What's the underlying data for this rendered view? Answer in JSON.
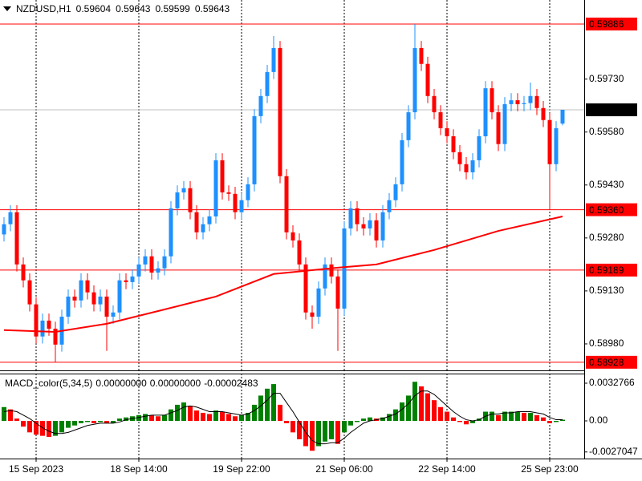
{
  "chart_data": [
    {
      "type": "candlestick",
      "symbol": "NZDUSD,H1",
      "open": [
        0.5929,
        0.59319,
        0.59353,
        0.59205,
        0.5916,
        0.59092,
        0.59001,
        0.59046,
        0.59023,
        0.58978,
        0.59057,
        0.59114,
        0.59103,
        0.5916,
        0.59126,
        0.59092,
        0.59114,
        0.59057,
        0.59069,
        0.5916,
        0.59155,
        0.59171,
        0.59205,
        0.59228,
        0.59182,
        0.59194,
        0.59228,
        0.59364,
        0.59409,
        0.59421,
        0.59353,
        0.59296,
        0.59319,
        0.59341,
        0.595,
        0.59409,
        0.59405,
        0.59353,
        0.59387,
        0.59432,
        0.59625,
        0.59682,
        0.5975,
        0.59818,
        0.59455,
        0.59296,
        0.59273,
        0.59205,
        0.59069,
        0.59057,
        0.59137,
        0.59205,
        0.59171,
        0.5908,
        0.59307,
        0.59364,
        0.59319,
        0.59307,
        0.5933,
        0.59273,
        0.59353,
        0.59387,
        0.59432,
        0.59557,
        0.59636,
        0.59818,
        0.59773,
        0.59682,
        0.59636,
        0.59591,
        0.59568,
        0.59523,
        0.59489,
        0.59466,
        0.595,
        0.59568,
        0.59704,
        0.59636,
        0.59546,
        0.59659,
        0.5967,
        0.59659,
        0.59662,
        0.59682,
        0.59648,
        0.59614,
        0.59489,
        0.59604
      ],
      "high": [
        0.59339,
        0.59373,
        0.59373,
        0.59225,
        0.5918,
        0.59112,
        0.59066,
        0.59066,
        0.59043,
        0.59077,
        0.59134,
        0.59134,
        0.5918,
        0.5918,
        0.59146,
        0.59134,
        0.59134,
        0.59089,
        0.5918,
        0.5918,
        0.59191,
        0.59225,
        0.59248,
        0.59248,
        0.59214,
        0.59248,
        0.59384,
        0.59429,
        0.59441,
        0.59441,
        0.59373,
        0.59339,
        0.59361,
        0.5952,
        0.5952,
        0.59429,
        0.59425,
        0.59407,
        0.59452,
        0.59645,
        0.59702,
        0.5977,
        0.59852,
        0.59838,
        0.59475,
        0.59316,
        0.59293,
        0.59225,
        0.59089,
        0.59157,
        0.59225,
        0.59225,
        0.59191,
        0.59327,
        0.59384,
        0.59384,
        0.59339,
        0.5935,
        0.5935,
        0.59373,
        0.59407,
        0.59452,
        0.59577,
        0.59656,
        0.59886,
        0.59838,
        0.59793,
        0.59702,
        0.59656,
        0.59611,
        0.59588,
        0.59543,
        0.59509,
        0.5952,
        0.59588,
        0.59724,
        0.59724,
        0.59656,
        0.59679,
        0.5969,
        0.5969,
        0.59682,
        0.5972,
        0.59702,
        0.59668,
        0.59634,
        0.59611,
        0.59643
      ],
      "low": [
        0.5927,
        0.59299,
        0.59185,
        0.5914,
        0.59072,
        0.58981,
        0.58981,
        0.59003,
        0.58928,
        0.58958,
        0.59037,
        0.59083,
        0.59083,
        0.59106,
        0.59072,
        0.59072,
        0.5896,
        0.59037,
        0.59049,
        0.59135,
        0.59135,
        0.59151,
        0.59185,
        0.59162,
        0.59162,
        0.59174,
        0.59208,
        0.59344,
        0.59389,
        0.59333,
        0.59276,
        0.59276,
        0.59299,
        0.59321,
        0.59389,
        0.59385,
        0.59333,
        0.59333,
        0.59367,
        0.59412,
        0.59605,
        0.59662,
        0.5973,
        0.59435,
        0.59276,
        0.59253,
        0.59185,
        0.59049,
        0.59023,
        0.59037,
        0.59117,
        0.59151,
        0.5896,
        0.5906,
        0.59287,
        0.59299,
        0.59287,
        0.59287,
        0.59253,
        0.59253,
        0.59333,
        0.59367,
        0.59412,
        0.59537,
        0.59616,
        0.59753,
        0.59662,
        0.59616,
        0.59571,
        0.59548,
        0.59503,
        0.59469,
        0.59446,
        0.59446,
        0.5948,
        0.59548,
        0.59616,
        0.59526,
        0.59526,
        0.59639,
        0.59639,
        0.59639,
        0.59642,
        0.59628,
        0.59594,
        0.5936,
        0.59469,
        0.59599
      ],
      "close": [
        0.59319,
        0.59353,
        0.59205,
        0.5916,
        0.59092,
        0.59001,
        0.59046,
        0.59023,
        0.58978,
        0.59057,
        0.59114,
        0.59103,
        0.5916,
        0.59126,
        0.59092,
        0.59114,
        0.59057,
        0.59069,
        0.5916,
        0.59155,
        0.59171,
        0.59205,
        0.59228,
        0.59182,
        0.59194,
        0.59228,
        0.59364,
        0.59409,
        0.59421,
        0.59353,
        0.59296,
        0.59319,
        0.59341,
        0.595,
        0.59409,
        0.59405,
        0.59353,
        0.59387,
        0.59432,
        0.59625,
        0.59682,
        0.5975,
        0.59818,
        0.59455,
        0.59296,
        0.59273,
        0.59205,
        0.59069,
        0.59057,
        0.59137,
        0.59205,
        0.59171,
        0.5908,
        0.59307,
        0.59364,
        0.59319,
        0.59307,
        0.5933,
        0.59273,
        0.59353,
        0.59387,
        0.59432,
        0.59557,
        0.59636,
        0.59818,
        0.59773,
        0.59682,
        0.59636,
        0.59591,
        0.59568,
        0.59523,
        0.59489,
        0.59466,
        0.595,
        0.59568,
        0.59704,
        0.59636,
        0.59546,
        0.59659,
        0.5967,
        0.59659,
        0.59662,
        0.59682,
        0.59648,
        0.59614,
        0.59489,
        0.59591,
        0.59643
      ],
      "up_color": "#1e90ff",
      "down_color": "#ff0000",
      "ylim": [
        0.58905,
        0.59954
      ],
      "yticks": [
        {
          "value": 0.5973,
          "label": "0.59730"
        },
        {
          "value": 0.5958,
          "label": "0.59580"
        },
        {
          "value": 0.5943,
          "label": "0.59430"
        },
        {
          "value": 0.5928,
          "label": "0.59280"
        },
        {
          "value": 0.5913,
          "label": "0.59130"
        },
        {
          "value": 0.5898,
          "label": "0.58980"
        }
      ],
      "xlim": [
        -0.625,
        90.375
      ],
      "xticks": [
        {
          "value": 5,
          "label": "15 Sep 2023"
        },
        {
          "value": 21,
          "label": "18 Sep 14:00"
        },
        {
          "value": 37,
          "label": "19 Sep 22:00"
        },
        {
          "value": 53,
          "label": "21 Sep 06:00"
        },
        {
          "value": 69,
          "label": "22 Sep 14:00"
        },
        {
          "value": 85,
          "label": "25 Sep 23:00"
        }
      ],
      "grid": true,
      "ma": {
        "color": "#ff0000",
        "x": [
          0,
          8,
          16,
          24,
          33,
          42,
          52,
          58,
          67,
          77,
          87
        ],
        "values": [
          0.59019,
          0.59014,
          0.59037,
          0.59073,
          0.59114,
          0.59178,
          0.59196,
          0.59205,
          0.59246,
          0.593,
          0.59341
        ]
      },
      "levels": [
        0.59886,
        {
          "value": 0.5936,
          "label": "0.59360"
        },
        0.59189,
        0.58928
      ],
      "level_color": "#ff0000",
      "current_price_color": "#c0c0c0"
    },
    {
      "type": "macd",
      "indicator": "MACD_color(5,34,5)",
      "readouts": [
        {
          "value": 0,
          "label": "0.00000000"
        },
        {
          "value": 0,
          "label": "0.00000000"
        },
        {
          "value": -2.483e-05,
          "label": "-0.00002483"
        }
      ],
      "series": [
        {
          "values": [
            0.0012,
            0.001,
            0.0002,
            -0.0005,
            -0.001,
            -0.0012,
            -0.0013,
            -0.0014,
            -0.0013,
            -0.001,
            -0.0006,
            -0.0004,
            -0.0002,
            -0.0001,
            -0.0002,
            -0.0001,
            -0.0002,
            -0.0002,
            0.0002,
            0.0003,
            0.0004,
            0.0005,
            0.0006,
            0.0005,
            0.0004,
            0.0005,
            0.001,
            0.0014,
            0.0016,
            0.0013,
            0.0009,
            0.0007,
            0.0006,
            0.0009,
            0.0008,
            0.0006,
            0.0004,
            0.0005,
            0.0007,
            0.0014,
            0.0022,
            0.0028,
            0.0032,
            0.0014,
            -0.0002,
            -0.001,
            -0.0016,
            -0.0022,
            -0.0026,
            -0.0022,
            -0.0018,
            -0.0016,
            -0.002,
            -0.001,
            -0.0004,
            -0.0001,
            0.0002,
            0.0003,
            0.0002,
            0.0003,
            0.0006,
            0.001,
            0.0016,
            0.0022,
            0.0034,
            0.003,
            0.0024,
            0.0018,
            0.0012,
            0.0008,
            0.0003,
            -0.0001,
            -0.0003,
            -0.0002,
            0.0002,
            0.0008,
            0.0008,
            0.0005,
            0.0008,
            0.0008,
            0.0008,
            0.0007,
            0.0007,
            0.0005,
            0.0003,
            -0.0002,
            -0.0001,
            0.0001
          ],
          "up_color": "#008000",
          "down_color": "#ff0000"
        },
        {
          "values": [
            0.0008,
            0.0009,
            0.0008,
            0.0005,
            0.0002,
            -0.0002,
            -0.0006,
            -0.0009,
            -0.0011,
            -0.0011,
            -0.001,
            -0.0008,
            -0.0006,
            -0.0004,
            -0.0003,
            -0.0002,
            -0.0002,
            -0.0002,
            -0.0001,
            0.0001,
            0.0002,
            0.0003,
            0.0004,
            0.0005,
            0.0005,
            0.0005,
            0.0007,
            0.0009,
            0.0012,
            0.0013,
            0.0012,
            0.001,
            0.0008,
            0.0008,
            0.0008,
            0.0007,
            0.0006,
            0.0005,
            0.0006,
            0.0009,
            0.0013,
            0.0018,
            0.0024,
            0.0024,
            0.0016,
            0.0008,
            -0.0001,
            -0.001,
            -0.0017,
            -0.002,
            -0.002,
            -0.0019,
            -0.0019,
            -0.0015,
            -0.001,
            -0.0006,
            -0.0002,
            0,
            0.0001,
            0.0002,
            0.0004,
            0.0006,
            0.001,
            0.0015,
            0.0022,
            0.0026,
            0.0026,
            0.0023,
            0.0018,
            0.0013,
            0.0008,
            0.0004,
            0.0001,
            0,
            0.0001,
            0.0004,
            0.0006,
            0.0006,
            0.0007,
            0.0007,
            0.0008,
            0.0008,
            0.0008,
            0.0007,
            0.0006,
            0.0003,
            0.0001,
            0.0001
          ],
          "color": "#000000"
        }
      ],
      "ylim": [
        -0.003277,
        0.004113
      ],
      "yticks": [
        0.0032766,
        {
          "value": 0,
          "label": "0.00"
        },
        -0.0027047
      ]
    }
  ]
}
